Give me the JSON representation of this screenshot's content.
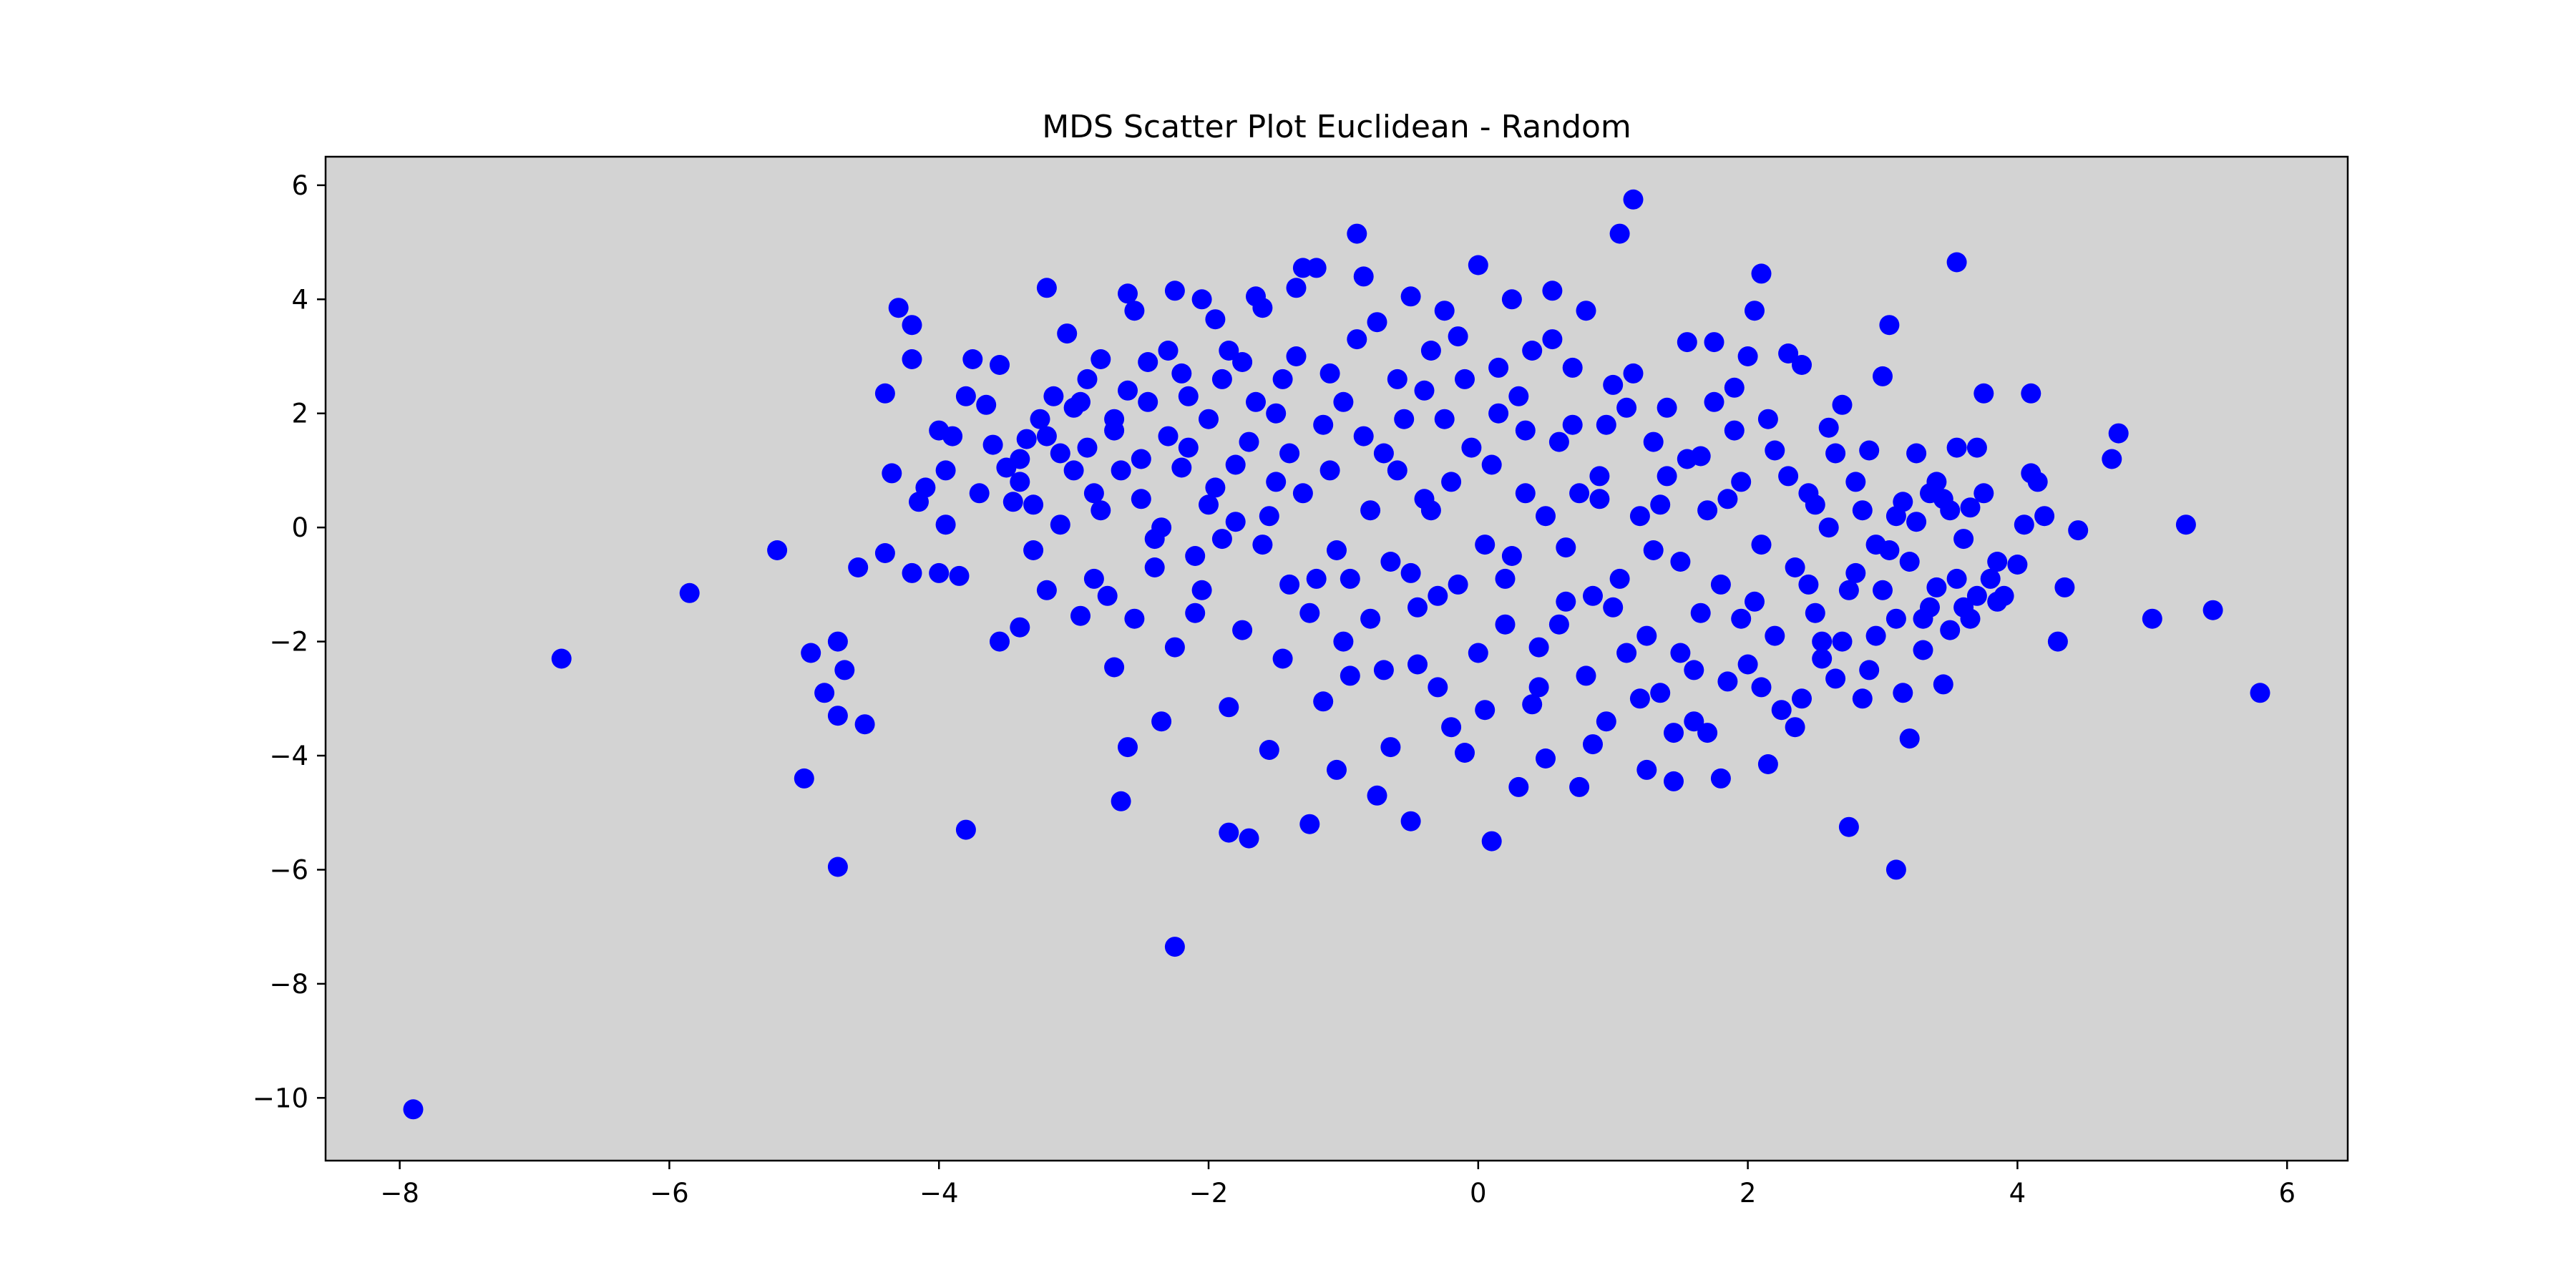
{
  "chart_data": {
    "type": "scatter",
    "title": "MDS Scatter Plot Euclidean - Random",
    "xlabel": "",
    "ylabel": "",
    "xlim": [
      -8.55,
      6.45
    ],
    "ylim": [
      -11.1,
      6.5
    ],
    "xticks": [
      -8,
      -6,
      -4,
      -2,
      0,
      2,
      4,
      6
    ],
    "yticks": [
      -10,
      -8,
      -6,
      -4,
      -2,
      0,
      2,
      4,
      6
    ],
    "xtick_labels": [
      "−8",
      "−6",
      "−4",
      "−2",
      "0",
      "2",
      "4",
      "6"
    ],
    "ytick_labels": [
      "−10",
      "−8",
      "−6",
      "−4",
      "−2",
      "0",
      "2",
      "4",
      "6"
    ],
    "grid": false,
    "legend": "none",
    "background_color": "#d3d3d3",
    "point_color": "#0000ff",
    "points": [
      [
        -7.9,
        -10.2
      ],
      [
        -6.8,
        -2.3
      ],
      [
        -5.85,
        -1.15
      ],
      [
        -5.2,
        -0.4
      ],
      [
        -5.0,
        -4.4
      ],
      [
        -4.95,
        -2.2
      ],
      [
        -4.85,
        -2.9
      ],
      [
        -4.75,
        -3.3
      ],
      [
        -4.75,
        -5.95
      ],
      [
        -4.75,
        -2.0
      ],
      [
        -4.7,
        -2.5
      ],
      [
        -4.6,
        -0.7
      ],
      [
        -4.55,
        -3.45
      ],
      [
        -4.4,
        -0.45
      ],
      [
        -4.4,
        2.35
      ],
      [
        -4.35,
        0.95
      ],
      [
        -4.3,
        3.85
      ],
      [
        -4.2,
        3.55
      ],
      [
        -4.2,
        2.95
      ],
      [
        -4.2,
        -0.8
      ],
      [
        -4.15,
        0.45
      ],
      [
        -4.1,
        0.7
      ],
      [
        -4.0,
        1.7
      ],
      [
        -4.0,
        -0.8
      ],
      [
        -3.95,
        1.0
      ],
      [
        -3.95,
        0.05
      ],
      [
        -3.9,
        1.6
      ],
      [
        -3.85,
        -0.85
      ],
      [
        -3.8,
        2.3
      ],
      [
        -3.8,
        -5.3
      ],
      [
        -3.75,
        2.95
      ],
      [
        -3.7,
        0.6
      ],
      [
        -3.65,
        2.15
      ],
      [
        -3.6,
        1.45
      ],
      [
        -3.55,
        2.85
      ],
      [
        -3.55,
        -2.0
      ],
      [
        -3.5,
        1.05
      ],
      [
        -3.45,
        0.45
      ],
      [
        -3.4,
        -1.75
      ],
      [
        -3.4,
        0.8
      ],
      [
        -3.35,
        1.55
      ],
      [
        -3.3,
        -0.4
      ],
      [
        -3.25,
        1.9
      ],
      [
        -3.2,
        4.2
      ],
      [
        -3.2,
        -1.1
      ],
      [
        -3.15,
        2.3
      ],
      [
        -3.1,
        0.05
      ],
      [
        -3.05,
        3.4
      ],
      [
        -3.0,
        1.0
      ],
      [
        -2.95,
        -1.55
      ],
      [
        -2.9,
        2.6
      ],
      [
        -2.85,
        0.6
      ],
      [
        -2.8,
        2.95
      ],
      [
        -2.75,
        -1.2
      ],
      [
        -2.7,
        -2.45
      ],
      [
        -2.7,
        1.7
      ],
      [
        -2.65,
        -4.8
      ],
      [
        -2.6,
        4.1
      ],
      [
        -2.6,
        -3.85
      ],
      [
        -2.55,
        3.8
      ],
      [
        -2.5,
        0.5
      ],
      [
        -2.45,
        2.2
      ],
      [
        -2.4,
        -0.7
      ],
      [
        -2.35,
        -3.4
      ],
      [
        -2.3,
        3.1
      ],
      [
        -2.25,
        4.15
      ],
      [
        -2.25,
        -7.35
      ],
      [
        -2.2,
        1.05
      ],
      [
        -2.15,
        2.3
      ],
      [
        -2.1,
        -1.5
      ],
      [
        -2.05,
        4.0
      ],
      [
        -2.0,
        0.4
      ],
      [
        -1.95,
        3.65
      ],
      [
        -1.9,
        -0.2
      ],
      [
        -1.85,
        -3.15
      ],
      [
        -1.85,
        -5.35
      ],
      [
        -1.8,
        1.1
      ],
      [
        -1.75,
        2.9
      ],
      [
        -1.7,
        -5.45
      ],
      [
        -1.65,
        4.05
      ],
      [
        -1.6,
        3.85
      ],
      [
        -1.55,
        -3.9
      ],
      [
        -1.5,
        0.8
      ],
      [
        -1.45,
        2.6
      ],
      [
        -1.4,
        -1.0
      ],
      [
        -1.35,
        4.2
      ],
      [
        -1.3,
        4.55
      ],
      [
        -1.25,
        -5.2
      ],
      [
        -1.2,
        4.55
      ],
      [
        -1.15,
        -3.05
      ],
      [
        -1.1,
        1.0
      ],
      [
        -1.05,
        -4.25
      ],
      [
        -1.0,
        2.2
      ],
      [
        -0.95,
        -0.9
      ],
      [
        -0.9,
        5.15
      ],
      [
        -0.85,
        4.4
      ],
      [
        -0.8,
        -1.6
      ],
      [
        -0.75,
        -4.7
      ],
      [
        -0.7,
        1.3
      ],
      [
        -0.65,
        -3.85
      ],
      [
        -0.6,
        2.6
      ],
      [
        -0.5,
        -5.15
      ],
      [
        -0.5,
        4.05
      ],
      [
        -0.45,
        -2.4
      ],
      [
        -0.4,
        0.5
      ],
      [
        -0.35,
        3.1
      ],
      [
        -0.3,
        -1.2
      ],
      [
        -0.25,
        1.9
      ],
      [
        -0.2,
        -3.5
      ],
      [
        -0.15,
        3.35
      ],
      [
        -0.1,
        -3.95
      ],
      [
        0.0,
        4.6
      ],
      [
        0.05,
        -0.3
      ],
      [
        0.1,
        -5.5
      ],
      [
        0.15,
        2.0
      ],
      [
        0.2,
        -1.7
      ],
      [
        0.25,
        4.0
      ],
      [
        0.3,
        -4.55
      ],
      [
        0.35,
        0.6
      ],
      [
        0.4,
        3.1
      ],
      [
        0.45,
        -2.1
      ],
      [
        0.5,
        -4.05
      ],
      [
        0.55,
        4.15
      ],
      [
        0.6,
        1.5
      ],
      [
        0.65,
        -0.35
      ],
      [
        0.7,
        2.8
      ],
      [
        0.75,
        -4.55
      ],
      [
        0.8,
        3.8
      ],
      [
        0.85,
        -1.2
      ],
      [
        0.9,
        0.9
      ],
      [
        0.95,
        -3.4
      ],
      [
        1.0,
        2.5
      ],
      [
        1.05,
        5.15
      ],
      [
        1.1,
        -2.2
      ],
      [
        1.15,
        5.75
      ],
      [
        1.2,
        0.2
      ],
      [
        1.25,
        -4.25
      ],
      [
        1.3,
        1.5
      ],
      [
        1.35,
        -2.9
      ],
      [
        1.4,
        2.1
      ],
      [
        1.45,
        -4.45
      ],
      [
        1.5,
        -0.6
      ],
      [
        1.55,
        3.25
      ],
      [
        1.6,
        -2.5
      ],
      [
        1.65,
        1.25
      ],
      [
        1.7,
        -3.6
      ],
      [
        1.75,
        3.25
      ],
      [
        1.8,
        -4.4
      ],
      [
        1.85,
        0.5
      ],
      [
        1.9,
        2.45
      ],
      [
        1.95,
        -1.6
      ],
      [
        2.0,
        3.0
      ],
      [
        2.05,
        3.8
      ],
      [
        2.1,
        -2.8
      ],
      [
        2.1,
        4.45
      ],
      [
        2.15,
        -4.15
      ],
      [
        2.2,
        1.35
      ],
      [
        2.3,
        3.05
      ],
      [
        2.35,
        -3.5
      ],
      [
        2.4,
        2.85
      ],
      [
        2.45,
        -1.0
      ],
      [
        2.5,
        0.4
      ],
      [
        2.55,
        -2.3
      ],
      [
        2.6,
        1.75
      ],
      [
        2.65,
        -2.65
      ],
      [
        2.7,
        2.15
      ],
      [
        2.75,
        -5.25
      ],
      [
        2.8,
        0.8
      ],
      [
        2.85,
        -3.0
      ],
      [
        2.9,
        1.35
      ],
      [
        2.95,
        -0.3
      ],
      [
        3.0,
        2.65
      ],
      [
        3.05,
        3.55
      ],
      [
        3.1,
        -6.0
      ],
      [
        3.1,
        -1.6
      ],
      [
        3.15,
        0.45
      ],
      [
        3.2,
        -3.7
      ],
      [
        3.25,
        1.3
      ],
      [
        3.3,
        -2.15
      ],
      [
        3.35,
        0.6
      ],
      [
        3.4,
        -1.05
      ],
      [
        3.45,
        -2.75
      ],
      [
        3.5,
        0.3
      ],
      [
        3.55,
        4.65
      ],
      [
        3.55,
        1.4
      ],
      [
        3.6,
        -1.4
      ],
      [
        3.65,
        0.35
      ],
      [
        3.7,
        1.4
      ],
      [
        3.75,
        2.35
      ],
      [
        3.8,
        -0.9
      ],
      [
        3.85,
        -0.6
      ],
      [
        3.9,
        -1.2
      ],
      [
        4.0,
        -0.65
      ],
      [
        4.05,
        0.05
      ],
      [
        4.1,
        2.35
      ],
      [
        4.1,
        0.95
      ],
      [
        4.15,
        0.8
      ],
      [
        4.2,
        0.2
      ],
      [
        4.3,
        -2.0
      ],
      [
        4.35,
        -1.05
      ],
      [
        4.45,
        -0.05
      ],
      [
        4.7,
        1.2
      ],
      [
        4.75,
        1.65
      ],
      [
        5.0,
        -1.6
      ],
      [
        5.25,
        0.05
      ],
      [
        5.45,
        -1.45
      ],
      [
        5.8,
        -2.9
      ],
      [
        -3.4,
        1.2
      ],
      [
        -3.2,
        1.6
      ],
      [
        -3.0,
        2.1
      ],
      [
        -2.9,
        1.4
      ],
      [
        -2.8,
        0.3
      ],
      [
        -2.7,
        1.9
      ],
      [
        -2.6,
        2.4
      ],
      [
        -2.5,
        1.2
      ],
      [
        -2.4,
        -0.2
      ],
      [
        -2.3,
        1.6
      ],
      [
        -2.2,
        2.7
      ],
      [
        -2.1,
        -0.5
      ],
      [
        -2.0,
        1.9
      ],
      [
        -1.9,
        2.6
      ],
      [
        -1.8,
        0.1
      ],
      [
        -1.7,
        1.5
      ],
      [
        -1.6,
        -0.3
      ],
      [
        -1.5,
        2.0
      ],
      [
        -1.4,
        1.3
      ],
      [
        -1.3,
        0.6
      ],
      [
        -1.2,
        -0.9
      ],
      [
        -1.1,
        2.7
      ],
      [
        -1.0,
        -2.0
      ],
      [
        -0.9,
        3.3
      ],
      [
        -0.8,
        0.3
      ],
      [
        -0.7,
        -2.5
      ],
      [
        -0.6,
        1.0
      ],
      [
        -0.5,
        -0.8
      ],
      [
        -0.4,
        2.4
      ],
      [
        -0.3,
        -2.8
      ],
      [
        -0.2,
        0.8
      ],
      [
        -0.1,
        2.6
      ],
      [
        0.0,
        -2.2
      ],
      [
        0.1,
        1.1
      ],
      [
        0.2,
        -0.9
      ],
      [
        0.3,
        2.3
      ],
      [
        0.4,
        -3.1
      ],
      [
        0.5,
        0.2
      ],
      [
        0.6,
        -1.7
      ],
      [
        0.7,
        1.8
      ],
      [
        0.8,
        -2.6
      ],
      [
        0.9,
        0.5
      ],
      [
        1.0,
        -1.4
      ],
      [
        1.1,
        2.1
      ],
      [
        1.2,
        -3.0
      ],
      [
        1.3,
        -0.4
      ],
      [
        1.4,
        0.9
      ],
      [
        1.5,
        -2.2
      ],
      [
        1.6,
        -3.4
      ],
      [
        1.7,
        0.3
      ],
      [
        1.8,
        -1.0
      ],
      [
        1.9,
        1.7
      ],
      [
        2.0,
        -2.4
      ],
      [
        2.1,
        -0.3
      ],
      [
        2.2,
        -1.9
      ],
      [
        2.3,
        0.9
      ],
      [
        2.4,
        -3.0
      ],
      [
        2.5,
        -1.5
      ],
      [
        2.6,
        0.0
      ],
      [
        2.7,
        -2.0
      ],
      [
        2.8,
        -0.8
      ],
      [
        2.9,
        -2.5
      ],
      [
        3.0,
        -1.1
      ],
      [
        3.1,
        0.2
      ],
      [
        3.2,
        -0.6
      ],
      [
        3.3,
        -1.6
      ],
      [
        3.4,
        0.8
      ],
      [
        3.5,
        -1.8
      ],
      [
        3.6,
        -0.2
      ],
      [
        3.7,
        -1.2
      ],
      [
        -3.3,
        0.4
      ],
      [
        -3.1,
        1.3
      ],
      [
        -2.95,
        2.2
      ],
      [
        -2.85,
        -0.9
      ],
      [
        -2.65,
        1.0
      ],
      [
        -2.55,
        -1.6
      ],
      [
        -2.45,
        2.9
      ],
      [
        -2.35,
        0.0
      ],
      [
        -2.25,
        -2.1
      ],
      [
        -2.15,
        1.4
      ],
      [
        -2.05,
        -1.1
      ],
      [
        -1.95,
        0.7
      ],
      [
        -1.85,
        3.1
      ],
      [
        -1.75,
        -1.8
      ],
      [
        -1.65,
        2.2
      ],
      [
        -1.55,
        0.2
      ],
      [
        -1.45,
        -2.3
      ],
      [
        -1.35,
        3.0
      ],
      [
        -1.25,
        -1.5
      ],
      [
        -1.15,
        1.8
      ],
      [
        -1.05,
        -0.4
      ],
      [
        -0.95,
        -2.6
      ],
      [
        -0.85,
        1.6
      ],
      [
        -0.75,
        3.6
      ],
      [
        -0.65,
        -0.6
      ],
      [
        -0.55,
        1.9
      ],
      [
        -0.45,
        -1.4
      ],
      [
        -0.35,
        0.3
      ],
      [
        -0.25,
        3.8
      ],
      [
        -0.15,
        -1.0
      ],
      [
        -0.05,
        1.4
      ],
      [
        0.05,
        -3.2
      ],
      [
        0.15,
        2.8
      ],
      [
        0.25,
        -0.5
      ],
      [
        0.35,
        1.7
      ],
      [
        0.45,
        -2.8
      ],
      [
        0.55,
        3.3
      ],
      [
        0.65,
        -1.3
      ],
      [
        0.75,
        0.6
      ],
      [
        0.85,
        -3.8
      ],
      [
        0.95,
        1.8
      ],
      [
        1.05,
        -0.9
      ],
      [
        1.15,
        2.7
      ],
      [
        1.25,
        -1.9
      ],
      [
        1.35,
        0.4
      ],
      [
        1.45,
        -3.6
      ],
      [
        1.55,
        1.2
      ],
      [
        1.65,
        -1.5
      ],
      [
        1.75,
        2.2
      ],
      [
        1.85,
        -2.7
      ],
      [
        1.95,
        0.8
      ],
      [
        2.05,
        -1.3
      ],
      [
        2.15,
        1.9
      ],
      [
        2.25,
        -3.2
      ],
      [
        2.35,
        -0.7
      ],
      [
        2.45,
        0.6
      ],
      [
        2.55,
        -2.0
      ],
      [
        2.65,
        1.3
      ],
      [
        2.75,
        -1.1
      ],
      [
        2.85,
        0.3
      ],
      [
        2.95,
        -1.9
      ],
      [
        3.05,
        -0.4
      ],
      [
        3.15,
        -2.9
      ],
      [
        3.25,
        0.1
      ],
      [
        3.35,
        -1.4
      ],
      [
        3.45,
        0.5
      ],
      [
        3.55,
        -0.9
      ],
      [
        3.65,
        -1.6
      ],
      [
        3.75,
        0.6
      ],
      [
        3.85,
        -1.3
      ]
    ]
  }
}
